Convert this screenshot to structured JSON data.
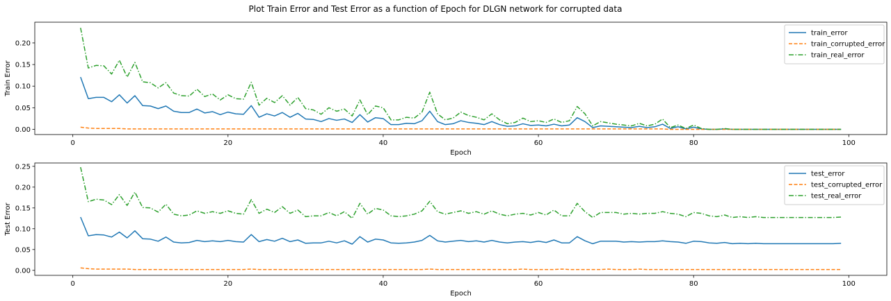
{
  "figure": {
    "title": "Plot Train Error and Test Error as a function of Epoch for DLGN network for corrupted data"
  },
  "colors": {
    "blue": "#1f77b4",
    "orange": "#ff7f0e",
    "green": "#2ca02c"
  },
  "chart_data": [
    {
      "type": "line",
      "xlabel": "Epoch",
      "ylabel": "Train Error",
      "xlim": [
        -4.9,
        104.9
      ],
      "ylim": [
        -0.012,
        0.248
      ],
      "xticks": [
        0,
        20,
        40,
        60,
        80,
        100
      ],
      "yticks": [
        0.0,
        0.05,
        0.1,
        0.15,
        0.2
      ],
      "ytick_labels": [
        "0.00",
        "0.05",
        "0.10",
        "0.15",
        "0.20"
      ],
      "grid": false,
      "legend_position": "upper right",
      "x": [
        1,
        2,
        3,
        4,
        5,
        6,
        7,
        8,
        9,
        10,
        11,
        12,
        13,
        14,
        15,
        16,
        17,
        18,
        19,
        20,
        21,
        22,
        23,
        24,
        25,
        26,
        27,
        28,
        29,
        30,
        31,
        32,
        33,
        34,
        35,
        36,
        37,
        38,
        39,
        40,
        41,
        42,
        43,
        44,
        45,
        46,
        47,
        48,
        49,
        50,
        51,
        52,
        53,
        54,
        55,
        56,
        57,
        58,
        59,
        60,
        61,
        62,
        63,
        64,
        65,
        66,
        67,
        68,
        69,
        70,
        71,
        72,
        73,
        74,
        75,
        76,
        77,
        78,
        79,
        80,
        81,
        82,
        83,
        84,
        85,
        86,
        87,
        88,
        89,
        90,
        91,
        92,
        93,
        94,
        95,
        96,
        97,
        98,
        99
      ],
      "series": [
        {
          "name": "train_error",
          "color": "blue",
          "dash": "solid",
          "values": [
            0.121,
            0.071,
            0.074,
            0.074,
            0.064,
            0.08,
            0.061,
            0.078,
            0.055,
            0.054,
            0.048,
            0.054,
            0.042,
            0.039,
            0.039,
            0.047,
            0.038,
            0.041,
            0.034,
            0.04,
            0.036,
            0.035,
            0.055,
            0.028,
            0.036,
            0.031,
            0.039,
            0.028,
            0.037,
            0.024,
            0.023,
            0.018,
            0.025,
            0.021,
            0.024,
            0.016,
            0.034,
            0.017,
            0.027,
            0.025,
            0.011,
            0.011,
            0.014,
            0.013,
            0.02,
            0.042,
            0.018,
            0.011,
            0.013,
            0.02,
            0.016,
            0.014,
            0.011,
            0.018,
            0.011,
            0.007,
            0.008,
            0.013,
            0.009,
            0.01,
            0.008,
            0.012,
            0.008,
            0.01,
            0.027,
            0.018,
            0.004,
            0.008,
            0.007,
            0.006,
            0.005,
            0.004,
            0.007,
            0.004,
            0.006,
            0.012,
            0.002,
            0.006,
            0.001,
            0.005,
            0.001,
            0.0,
            0.0,
            0.001,
            0.0,
            0.0,
            0.0,
            0.0,
            0.0,
            0.0,
            0.0,
            0.0,
            0.0,
            0.0,
            0.0,
            0.0,
            0.0,
            0.0,
            0.0
          ]
        },
        {
          "name": "train_corrupted_error",
          "color": "orange",
          "dash": "dashed",
          "values": [
            0.005,
            0.003,
            0.002,
            0.002,
            0.002,
            0.002,
            0.001,
            0.001,
            0.001,
            0.001,
            0.001,
            0.001,
            0.001,
            0.001,
            0.001,
            0.001,
            0.001,
            0.001,
            0.001,
            0.001,
            0.001,
            0.001,
            0.001,
            0.001,
            0.001,
            0.001,
            0.001,
            0.001,
            0.001,
            0.001,
            0.001,
            0.001,
            0.001,
            0.001,
            0.001,
            0.001,
            0.001,
            0.001,
            0.001,
            0.001,
            0.001,
            0.001,
            0.001,
            0.001,
            0.001,
            0.001,
            0.001,
            0.001,
            0.001,
            0.001,
            0.001,
            0.001,
            0.001,
            0.001,
            0.001,
            0.001,
            0.001,
            0.001,
            0.001,
            0.001,
            0.001,
            0.001,
            0.001,
            0.001,
            0.001,
            0.001,
            0.001,
            0.001,
            0.001,
            0.001,
            0.001,
            0.001,
            0.001,
            0.001,
            0.001,
            0.001,
            0.0,
            0.0,
            0.0,
            0.0,
            0.0,
            0.0,
            0.0,
            0.0,
            0.0,
            0.0,
            0.0,
            0.0,
            0.0,
            0.0,
            0.0,
            0.0,
            0.0,
            0.0,
            0.0,
            0.0,
            0.0,
            0.0,
            0.0
          ]
        },
        {
          "name": "train_real_error",
          "color": "green",
          "dash": "dashdot",
          "values": [
            0.235,
            0.142,
            0.148,
            0.147,
            0.128,
            0.16,
            0.121,
            0.155,
            0.11,
            0.108,
            0.096,
            0.108,
            0.084,
            0.078,
            0.077,
            0.093,
            0.076,
            0.082,
            0.068,
            0.08,
            0.071,
            0.07,
            0.109,
            0.056,
            0.072,
            0.062,
            0.078,
            0.056,
            0.074,
            0.048,
            0.045,
            0.035,
            0.05,
            0.042,
            0.047,
            0.031,
            0.068,
            0.034,
            0.054,
            0.05,
            0.022,
            0.022,
            0.028,
            0.026,
            0.04,
            0.086,
            0.036,
            0.022,
            0.026,
            0.04,
            0.032,
            0.028,
            0.022,
            0.036,
            0.022,
            0.013,
            0.016,
            0.026,
            0.018,
            0.02,
            0.016,
            0.024,
            0.016,
            0.02,
            0.053,
            0.036,
            0.008,
            0.018,
            0.015,
            0.012,
            0.01,
            0.008,
            0.014,
            0.008,
            0.012,
            0.024,
            0.004,
            0.01,
            0.002,
            0.01,
            0.002,
            0.0,
            0.0,
            0.002,
            0.0,
            0.0,
            0.0,
            0.0,
            0.0,
            0.0,
            0.0,
            0.0,
            0.0,
            0.0,
            0.0,
            0.0,
            0.0,
            0.0,
            0.0
          ]
        }
      ]
    },
    {
      "type": "line",
      "xlabel": "Epoch",
      "ylabel": "Test Error",
      "xlim": [
        -4.9,
        104.9
      ],
      "ylim": [
        -0.012,
        0.258
      ],
      "xticks": [
        0,
        20,
        40,
        60,
        80,
        100
      ],
      "yticks": [
        0.0,
        0.05,
        0.1,
        0.15,
        0.2,
        0.25
      ],
      "ytick_labels": [
        "0.00",
        "0.05",
        "0.10",
        "0.15",
        "0.20",
        "0.25"
      ],
      "grid": false,
      "legend_position": "upper right",
      "x": [
        1,
        2,
        3,
        4,
        5,
        6,
        7,
        8,
        9,
        10,
        11,
        12,
        13,
        14,
        15,
        16,
        17,
        18,
        19,
        20,
        21,
        22,
        23,
        24,
        25,
        26,
        27,
        28,
        29,
        30,
        31,
        32,
        33,
        34,
        35,
        36,
        37,
        38,
        39,
        40,
        41,
        42,
        43,
        44,
        45,
        46,
        47,
        48,
        49,
        50,
        51,
        52,
        53,
        54,
        55,
        56,
        57,
        58,
        59,
        60,
        61,
        62,
        63,
        64,
        65,
        66,
        67,
        68,
        69,
        70,
        71,
        72,
        73,
        74,
        75,
        76,
        77,
        78,
        79,
        80,
        81,
        82,
        83,
        84,
        85,
        86,
        87,
        88,
        89,
        90,
        91,
        92,
        93,
        94,
        95,
        96,
        97,
        98,
        99
      ],
      "series": [
        {
          "name": "test_error",
          "color": "blue",
          "dash": "solid",
          "values": [
            0.128,
            0.083,
            0.086,
            0.085,
            0.08,
            0.092,
            0.078,
            0.095,
            0.076,
            0.075,
            0.07,
            0.08,
            0.068,
            0.066,
            0.067,
            0.072,
            0.069,
            0.071,
            0.069,
            0.072,
            0.069,
            0.068,
            0.086,
            0.069,
            0.074,
            0.07,
            0.077,
            0.069,
            0.073,
            0.065,
            0.066,
            0.066,
            0.07,
            0.066,
            0.071,
            0.063,
            0.081,
            0.068,
            0.075,
            0.073,
            0.066,
            0.065,
            0.066,
            0.068,
            0.072,
            0.084,
            0.071,
            0.068,
            0.07,
            0.072,
            0.069,
            0.071,
            0.068,
            0.072,
            0.068,
            0.066,
            0.068,
            0.069,
            0.067,
            0.07,
            0.067,
            0.073,
            0.066,
            0.066,
            0.081,
            0.071,
            0.064,
            0.07,
            0.07,
            0.07,
            0.068,
            0.069,
            0.068,
            0.069,
            0.069,
            0.071,
            0.069,
            0.068,
            0.065,
            0.07,
            0.069,
            0.066,
            0.065,
            0.067,
            0.064,
            0.065,
            0.064,
            0.065,
            0.064,
            0.064,
            0.064,
            0.064,
            0.064,
            0.064,
            0.064,
            0.064,
            0.064,
            0.064,
            0.065
          ]
        },
        {
          "name": "test_corrupted_error",
          "color": "orange",
          "dash": "dashed",
          "values": [
            0.006,
            0.004,
            0.003,
            0.003,
            0.003,
            0.003,
            0.003,
            0.002,
            0.002,
            0.002,
            0.002,
            0.002,
            0.002,
            0.002,
            0.002,
            0.002,
            0.002,
            0.002,
            0.002,
            0.002,
            0.002,
            0.002,
            0.003,
            0.002,
            0.002,
            0.002,
            0.002,
            0.002,
            0.002,
            0.002,
            0.002,
            0.002,
            0.002,
            0.002,
            0.002,
            0.002,
            0.002,
            0.002,
            0.002,
            0.002,
            0.002,
            0.002,
            0.002,
            0.002,
            0.002,
            0.003,
            0.002,
            0.002,
            0.002,
            0.002,
            0.002,
            0.002,
            0.002,
            0.002,
            0.002,
            0.002,
            0.002,
            0.003,
            0.002,
            0.002,
            0.002,
            0.002,
            0.003,
            0.002,
            0.002,
            0.002,
            0.002,
            0.002,
            0.003,
            0.002,
            0.002,
            0.002,
            0.003,
            0.002,
            0.002,
            0.002,
            0.002,
            0.002,
            0.002,
            0.002,
            0.002,
            0.002,
            0.002,
            0.002,
            0.002,
            0.002,
            0.002,
            0.002,
            0.002,
            0.002,
            0.002,
            0.002,
            0.002,
            0.002,
            0.002,
            0.002,
            0.002,
            0.002,
            0.002
          ]
        },
        {
          "name": "test_real_error",
          "color": "green",
          "dash": "dashdot",
          "values": [
            0.248,
            0.165,
            0.171,
            0.169,
            0.158,
            0.182,
            0.156,
            0.188,
            0.151,
            0.15,
            0.14,
            0.159,
            0.135,
            0.131,
            0.133,
            0.143,
            0.137,
            0.141,
            0.137,
            0.143,
            0.137,
            0.135,
            0.17,
            0.137,
            0.147,
            0.139,
            0.153,
            0.137,
            0.145,
            0.129,
            0.131,
            0.131,
            0.139,
            0.131,
            0.141,
            0.125,
            0.161,
            0.135,
            0.149,
            0.145,
            0.131,
            0.129,
            0.131,
            0.135,
            0.143,
            0.166,
            0.141,
            0.135,
            0.139,
            0.143,
            0.137,
            0.141,
            0.135,
            0.143,
            0.135,
            0.131,
            0.135,
            0.137,
            0.133,
            0.139,
            0.133,
            0.145,
            0.131,
            0.131,
            0.161,
            0.141,
            0.127,
            0.139,
            0.139,
            0.139,
            0.135,
            0.137,
            0.135,
            0.137,
            0.137,
            0.141,
            0.137,
            0.135,
            0.129,
            0.139,
            0.137,
            0.131,
            0.129,
            0.133,
            0.127,
            0.129,
            0.127,
            0.129,
            0.127,
            0.127,
            0.127,
            0.127,
            0.127,
            0.127,
            0.127,
            0.127,
            0.127,
            0.127,
            0.128
          ]
        }
      ]
    }
  ]
}
